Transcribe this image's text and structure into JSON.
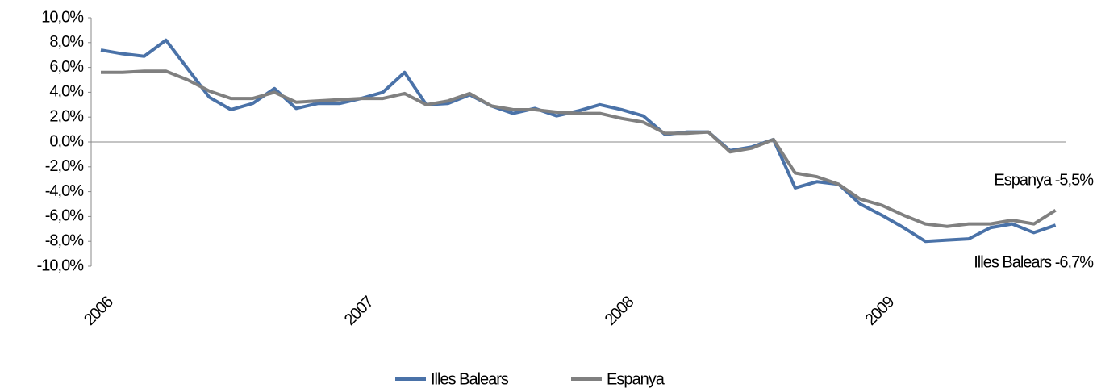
{
  "chart_data": {
    "type": "line",
    "categories": [
      "2006",
      null,
      null,
      null,
      null,
      null,
      null,
      null,
      null,
      null,
      null,
      null,
      "2007",
      null,
      null,
      null,
      null,
      null,
      null,
      null,
      null,
      null,
      null,
      null,
      "2008",
      null,
      null,
      null,
      null,
      null,
      null,
      null,
      null,
      null,
      null,
      null,
      "2009",
      null,
      null,
      null,
      null,
      null,
      null,
      null,
      null
    ],
    "series": [
      {
        "name": "Illes Balears",
        "color": "#4a72a8",
        "values": [
          7.4,
          7.1,
          6.9,
          8.2,
          5.9,
          3.6,
          2.6,
          3.1,
          4.3,
          2.7,
          3.1,
          3.1,
          3.5,
          4.0,
          5.6,
          3.0,
          3.1,
          3.8,
          2.9,
          2.3,
          2.7,
          2.1,
          2.5,
          3.0,
          2.6,
          2.1,
          0.6,
          0.8,
          0.8,
          -0.7,
          -0.4,
          0.2,
          -3.7,
          -3.2,
          -3.4,
          -5.0,
          -5.9,
          -6.9,
          -8.0,
          -7.9,
          -7.8,
          -6.9,
          -6.6,
          -7.3,
          -6.7
        ]
      },
      {
        "name": "Espanya",
        "color": "#808080",
        "values": [
          5.6,
          5.6,
          5.7,
          5.7,
          5.0,
          4.1,
          3.5,
          3.5,
          4.0,
          3.2,
          3.3,
          3.4,
          3.5,
          3.5,
          3.9,
          3.0,
          3.3,
          3.9,
          2.9,
          2.6,
          2.6,
          2.4,
          2.3,
          2.3,
          1.9,
          1.6,
          0.7,
          0.7,
          0.8,
          -0.8,
          -0.5,
          0.2,
          -2.5,
          -2.8,
          -3.4,
          -4.6,
          -5.1,
          -5.9,
          -6.6,
          -6.8,
          -6.6,
          -6.6,
          -6.3,
          -6.6,
          -5.5
        ]
      }
    ],
    "ylim": [
      -10,
      10
    ],
    "yticks": [
      {
        "value": -10,
        "label": "-10,0%"
      },
      {
        "value": -8,
        "label": "-8,0%"
      },
      {
        "value": -6,
        "label": "-6,0%"
      },
      {
        "value": -4,
        "label": "-4,0%"
      },
      {
        "value": -2,
        "label": "-2,0%"
      },
      {
        "value": 0,
        "label": "0,0%"
      },
      {
        "value": 2,
        "label": "2,0%"
      },
      {
        "value": 4,
        "label": "4,0%"
      },
      {
        "value": 6,
        "label": "6,0%"
      },
      {
        "value": 8,
        "label": "8,0%"
      },
      {
        "value": 10,
        "label": "10,0%"
      }
    ],
    "annotations": [
      {
        "text": "Espanya -5,5%"
      },
      {
        "text": "Illes Balears -6,7%"
      }
    ],
    "legend": "bottom"
  }
}
